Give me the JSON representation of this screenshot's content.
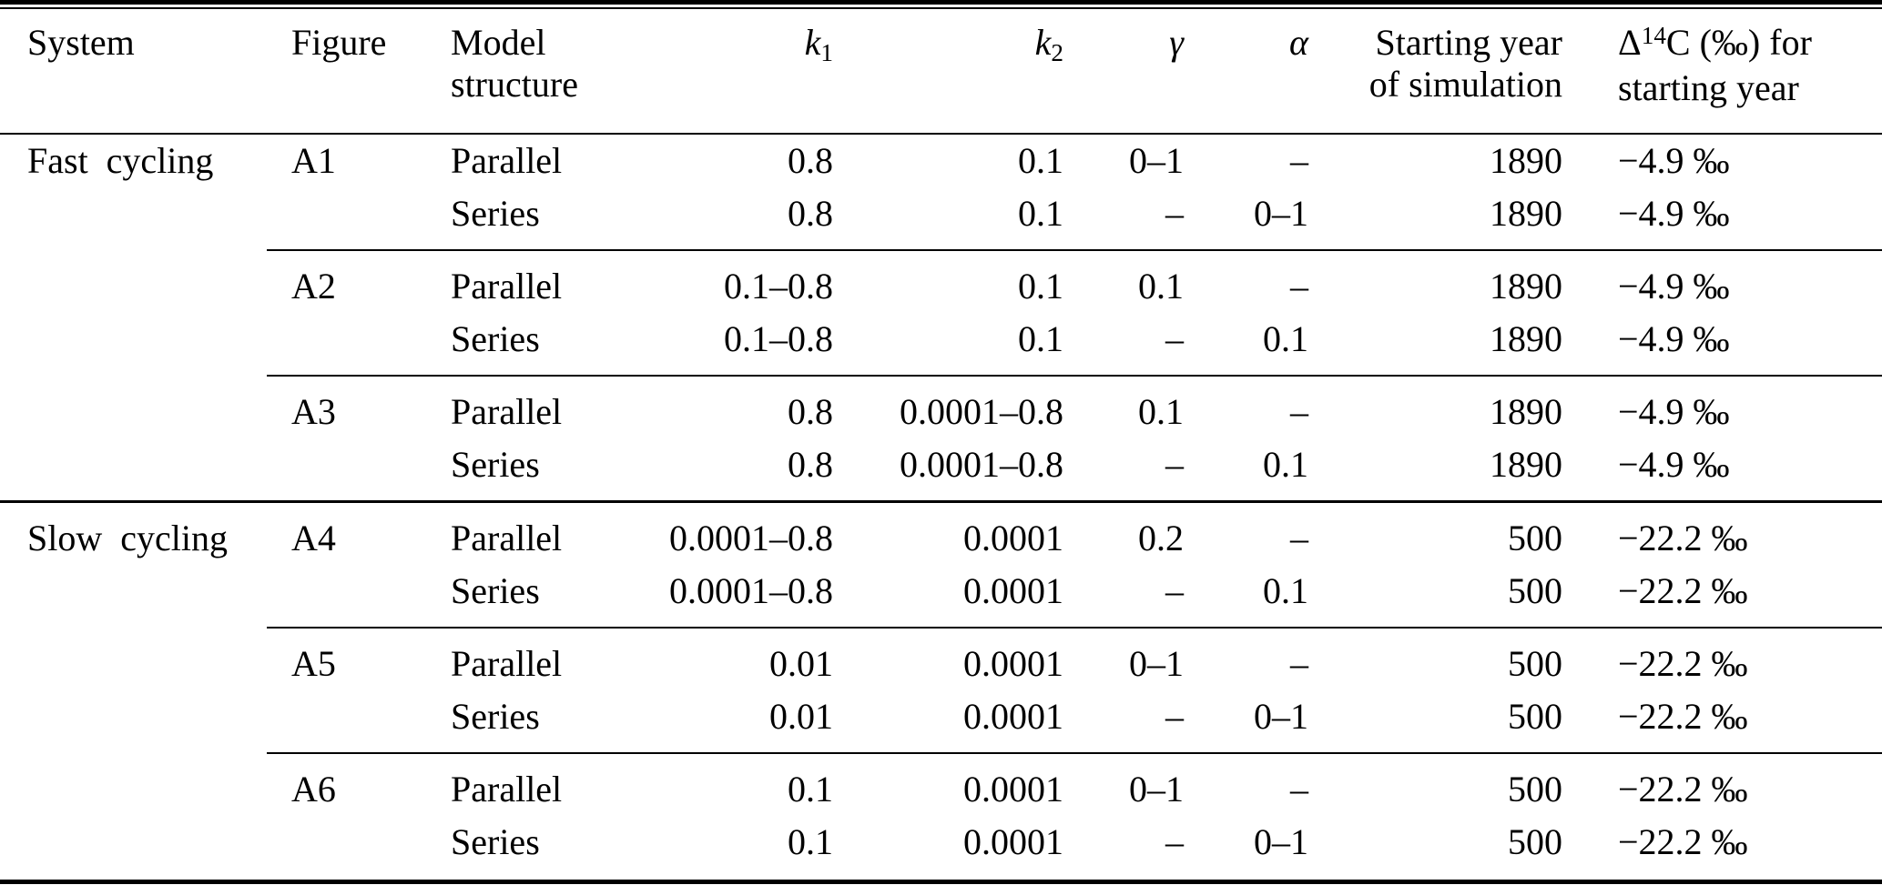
{
  "table": {
    "headers": {
      "system": "System",
      "figure": "Figure",
      "structure": [
        "Model",
        "structure"
      ],
      "k1": {
        "base": "k",
        "sub": "1"
      },
      "k2": {
        "base": "k",
        "sub": "2"
      },
      "gamma": "γ",
      "alpha": "α",
      "year": [
        "Starting year",
        "of simulation"
      ],
      "d14c": {
        "delta": "Δ",
        "sup": "14",
        "rest": "C (‰) for",
        "line2": "starting year"
      }
    },
    "rows": [
      {
        "system": "Fast cycling",
        "figure": "A1",
        "structure": "Parallel",
        "k1": "0.8",
        "k2": "0.1",
        "gamma": "0–1",
        "alpha": "–",
        "year": "1890",
        "d14c": "−4.9 ‰",
        "rule_after": "none"
      },
      {
        "system": "",
        "figure": "",
        "structure": "Series",
        "k1": "0.8",
        "k2": "0.1",
        "gamma": "–",
        "alpha": "0–1",
        "year": "1890",
        "d14c": "−4.9 ‰",
        "rule_after": "partial"
      },
      {
        "system": "",
        "figure": "A2",
        "structure": "Parallel",
        "k1": "0.1–0.8",
        "k2": "0.1",
        "gamma": "0.1",
        "alpha": "–",
        "year": "1890",
        "d14c": "−4.9 ‰",
        "rule_after": "none"
      },
      {
        "system": "",
        "figure": "",
        "structure": "Series",
        "k1": "0.1–0.8",
        "k2": "0.1",
        "gamma": "–",
        "alpha": "0.1",
        "year": "1890",
        "d14c": "−4.9 ‰",
        "rule_after": "partial"
      },
      {
        "system": "",
        "figure": "A3",
        "structure": "Parallel",
        "k1": "0.8",
        "k2": "0.0001–0.8",
        "gamma": "0.1",
        "alpha": "–",
        "year": "1890",
        "d14c": "−4.9 ‰",
        "rule_after": "none"
      },
      {
        "system": "",
        "figure": "",
        "structure": "Series",
        "k1": "0.8",
        "k2": "0.0001–0.8",
        "gamma": "–",
        "alpha": "0.1",
        "year": "1890",
        "d14c": "−4.9 ‰",
        "rule_after": "full"
      },
      {
        "system": "Slow cycling",
        "figure": "A4",
        "structure": "Parallel",
        "k1": "0.0001–0.8",
        "k2": "0.0001",
        "gamma": "0.2",
        "alpha": "–",
        "year": "500",
        "d14c": "−22.2 ‰",
        "rule_after": "none"
      },
      {
        "system": "",
        "figure": "",
        "structure": "Series",
        "k1": "0.0001–0.8",
        "k2": "0.0001",
        "gamma": "–",
        "alpha": "0.1",
        "year": "500",
        "d14c": "−22.2 ‰",
        "rule_after": "partial"
      },
      {
        "system": "",
        "figure": "A5",
        "structure": "Parallel",
        "k1": "0.01",
        "k2": "0.0001",
        "gamma": "0–1",
        "alpha": "–",
        "year": "500",
        "d14c": "−22.2 ‰",
        "rule_after": "none"
      },
      {
        "system": "",
        "figure": "",
        "structure": "Series",
        "k1": "0.01",
        "k2": "0.0001",
        "gamma": "–",
        "alpha": "0–1",
        "year": "500",
        "d14c": "−22.2 ‰",
        "rule_after": "partial"
      },
      {
        "system": "",
        "figure": "A6",
        "structure": "Parallel",
        "k1": "0.1",
        "k2": "0.0001",
        "gamma": "0–1",
        "alpha": "–",
        "year": "500",
        "d14c": "−22.2 ‰",
        "rule_after": "none"
      },
      {
        "system": "",
        "figure": "",
        "structure": "Series",
        "k1": "0.1",
        "k2": "0.0001",
        "gamma": "–",
        "alpha": "0–1",
        "year": "500",
        "d14c": "−22.2 ‰",
        "rule_after": "none"
      }
    ]
  }
}
